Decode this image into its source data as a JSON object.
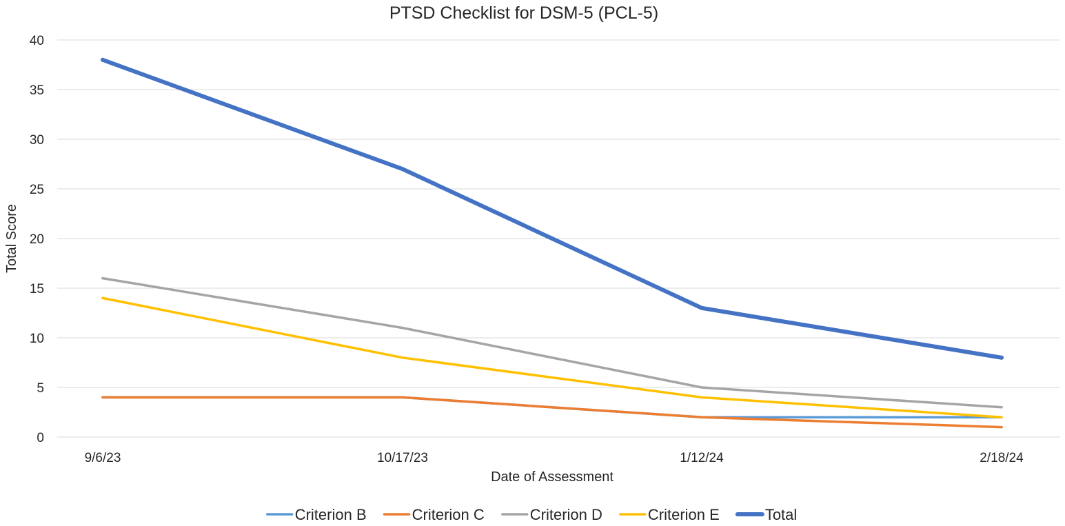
{
  "chart_data": {
    "type": "line",
    "title": "PTSD Checklist for DSM-5 (PCL-5)",
    "xlabel": "Date of Assessment",
    "ylabel": "Total Score",
    "categories": [
      "9/6/23",
      "10/17/23",
      "1/12/24",
      "2/18/24"
    ],
    "ylim": [
      0,
      40
    ],
    "yticks": [
      0,
      5,
      10,
      15,
      20,
      25,
      30,
      35,
      40
    ],
    "grid": true,
    "legend_position": "bottom",
    "series": [
      {
        "name": "Criterion B",
        "color": "#5b9bd5",
        "emphasis": "normal",
        "values": [
          4,
          4,
          2,
          2
        ]
      },
      {
        "name": "Criterion C",
        "color": "#ed7d31",
        "emphasis": "normal",
        "values": [
          4,
          4,
          2,
          1
        ]
      },
      {
        "name": "Criterion D",
        "color": "#a5a5a5",
        "emphasis": "normal",
        "values": [
          16,
          11,
          5,
          3
        ]
      },
      {
        "name": "Criterion E",
        "color": "#ffc000",
        "emphasis": "normal",
        "values": [
          14,
          8,
          4,
          2
        ]
      },
      {
        "name": "Total",
        "color": "#4472c4",
        "emphasis": "bold",
        "values": [
          38,
          27,
          13,
          8
        ]
      }
    ]
  }
}
